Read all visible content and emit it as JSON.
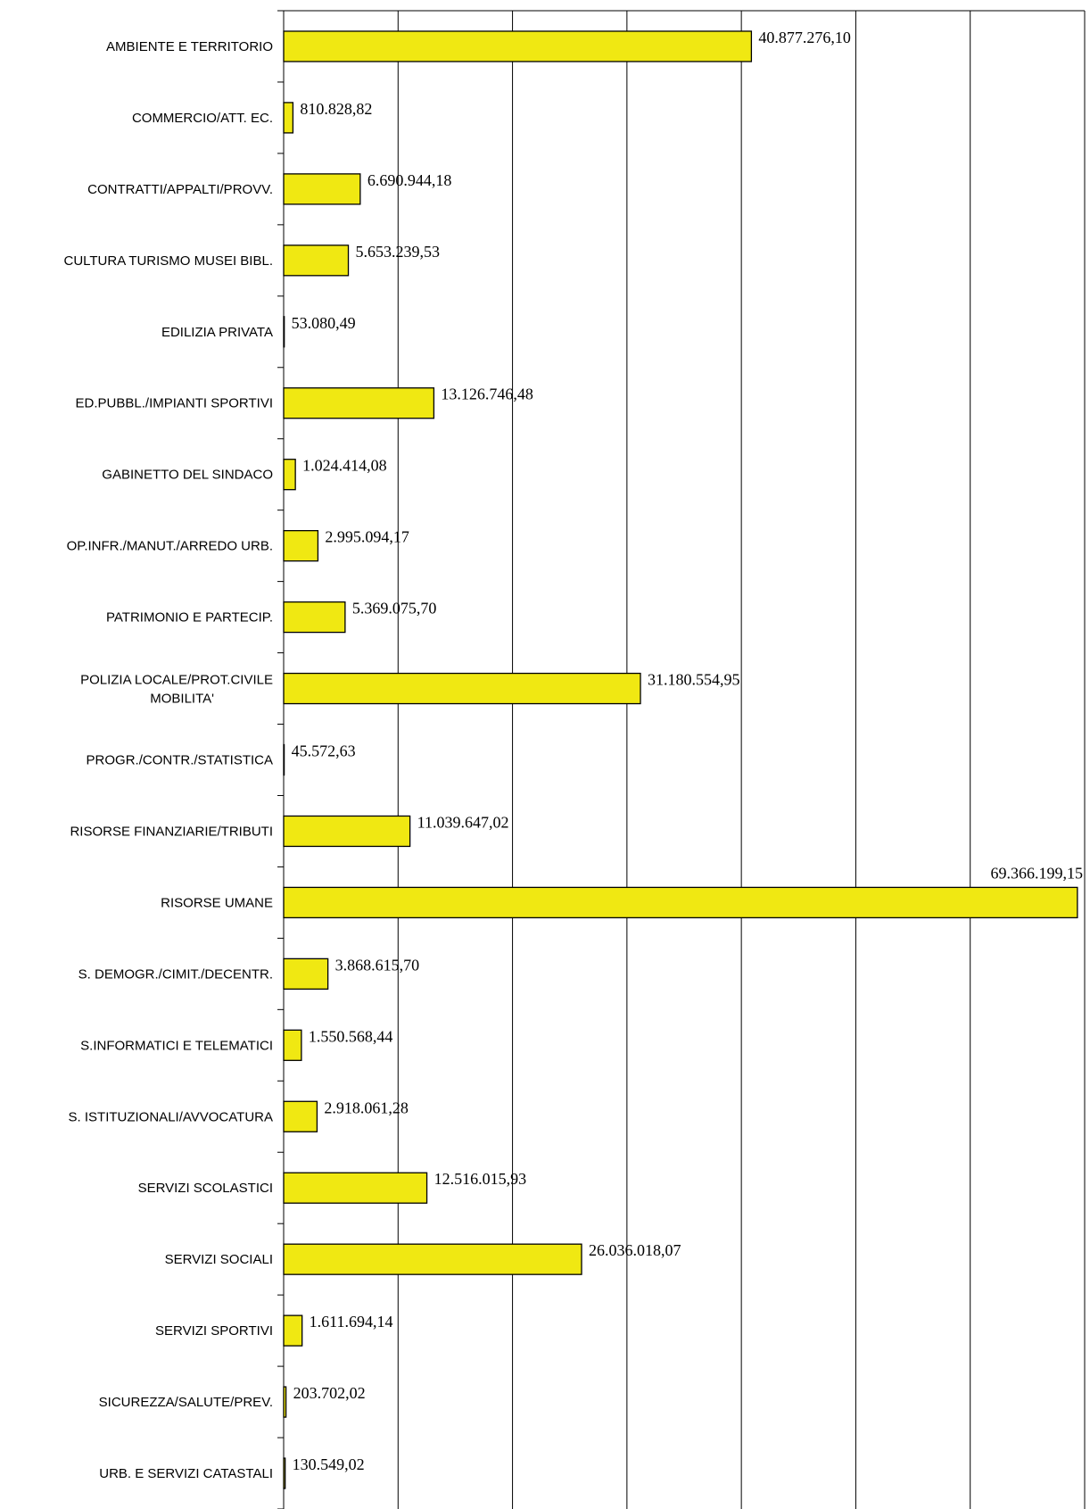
{
  "chart_data": {
    "type": "bar",
    "orientation": "horizontal",
    "categories": [
      "AMBIENTE E TERRITORIO",
      "COMMERCIO/ATT. EC.",
      "CONTRATTI/APPALTI/PROVV.",
      "CULTURA TURISMO MUSEI BIBL.",
      "EDILIZIA PRIVATA",
      "ED.PUBBL./IMPIANTI SPORTIVI",
      "GABINETTO DEL SINDACO",
      "OP.INFR./MANUT./ARREDO URB.",
      "PATRIMONIO E PARTECIP.",
      "POLIZIA LOCALE/PROT.CIVILE MOBILITA'",
      "PROGR./CONTR./STATISTICA",
      "RISORSE FINANZIARIE/TRIBUTI",
      "RISORSE UMANE",
      "S. DEMOGR./CIMIT./DECENTR.",
      "S.INFORMATICI E TELEMATICI",
      "S. ISTITUZIONALI/AVVOCATURA",
      "SERVIZI SCOLASTICI",
      "SERVIZI SOCIALI",
      "SERVIZI SPORTIVI",
      "SICUREZZA/SALUTE/PREV.",
      "URB. E SERVIZI CATASTALI"
    ],
    "values": [
      40877276.1,
      810828.82,
      6690944.18,
      5653239.53,
      53080.49,
      13126746.48,
      1024414.08,
      2995094.17,
      5369075.7,
      31180554.95,
      45572.63,
      11039647.02,
      69366199.15,
      3868615.7,
      1550568.44,
      2918061.28,
      12516015.93,
      26036018.07,
      1611694.14,
      203702.02,
      130549.02
    ],
    "value_labels": [
      "40.877.276,10",
      "810.828,82",
      "6.690.944,18",
      "5.653.239,53",
      "53.080,49",
      "13.126.746,48",
      "1.024.414,08",
      "2.995.094,17",
      "5.369.075,70",
      "31.180.554,95",
      "45.572,63",
      "11.039.647,02",
      "69.366.199,15",
      "3.868.615,70",
      "1.550.568,44",
      "2.918.061,28",
      "12.516.015,93",
      "26.036.018,07",
      "1.611.694,14",
      "203.702,02",
      "130.549,02"
    ],
    "xlim": [
      0,
      70000000
    ],
    "x_gridlines": [
      10000000,
      20000000,
      30000000,
      40000000,
      50000000,
      60000000,
      70000000
    ],
    "grid": true,
    "legend": false,
    "colors": {
      "bar_fill": "#f0e812",
      "bar_stroke": "#000000",
      "grid": "#000000"
    }
  }
}
